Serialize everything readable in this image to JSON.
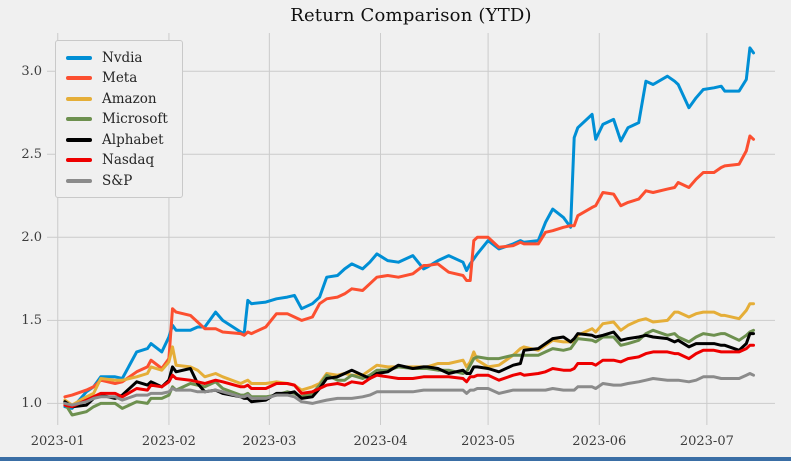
{
  "figure": {
    "background_color": "#f0f0f0",
    "grid_color": "#cbcbcb",
    "tick_label_color": "#3c3c3c",
    "bottom_bar_color": "#3a6ea5"
  },
  "chart_data": {
    "type": "line",
    "title": "Return Comparison (YTD)",
    "xlabel": "",
    "ylabel": "",
    "grid": true,
    "legend_position": "upper left",
    "x_unit": "days since 2023-01-01 (trading days)",
    "xlim": [
      -3,
      200
    ],
    "ylim": [
      0.87,
      3.23
    ],
    "y_ticks": [
      1.0,
      1.5,
      2.0,
      2.5,
      3.0
    ],
    "x_ticks": [
      {
        "day": 0,
        "label": "2023-01"
      },
      {
        "day": 31,
        "label": "2023-02"
      },
      {
        "day": 59,
        "label": "2023-03"
      },
      {
        "day": 90,
        "label": "2023-04"
      },
      {
        "day": 120,
        "label": "2023-05"
      },
      {
        "day": 151,
        "label": "2023-06"
      },
      {
        "day": 181,
        "label": "2023-07"
      }
    ],
    "x": [
      2,
      4,
      8,
      10,
      12,
      16,
      18,
      22,
      25,
      26,
      29,
      31,
      32,
      33,
      37,
      39,
      41,
      44,
      46,
      51,
      52,
      53,
      54,
      58,
      61,
      64,
      66,
      68,
      71,
      73,
      75,
      78,
      80,
      82,
      85,
      87,
      89,
      92,
      95,
      99,
      102,
      103,
      106,
      109,
      113,
      114,
      115,
      116,
      117,
      120,
      123,
      127,
      129,
      130,
      134,
      136,
      138,
      141,
      143,
      144,
      145,
      149,
      150,
      152,
      155,
      157,
      159,
      162,
      164,
      166,
      170,
      172,
      173,
      176,
      178,
      180,
      183,
      185,
      186,
      190,
      192,
      193,
      194
    ],
    "series": [
      {
        "name": "Nvdia",
        "color": "#008fd5",
        "values": [
          0.98,
          0.97,
          1.07,
          1.1,
          1.16,
          1.16,
          1.15,
          1.31,
          1.33,
          1.36,
          1.31,
          1.4,
          1.47,
          1.44,
          1.44,
          1.46,
          1.46,
          1.55,
          1.5,
          1.43,
          1.42,
          1.62,
          1.6,
          1.61,
          1.63,
          1.64,
          1.65,
          1.57,
          1.6,
          1.64,
          1.76,
          1.77,
          1.81,
          1.84,
          1.81,
          1.85,
          1.9,
          1.86,
          1.85,
          1.89,
          1.81,
          1.82,
          1.86,
          1.89,
          1.85,
          1.8,
          1.84,
          1.87,
          1.9,
          1.98,
          1.93,
          1.96,
          1.98,
          1.97,
          1.98,
          2.09,
          2.17,
          2.12,
          2.06,
          2.6,
          2.66,
          2.74,
          2.59,
          2.68,
          2.71,
          2.58,
          2.66,
          2.69,
          2.94,
          2.92,
          2.97,
          2.94,
          2.92,
          2.78,
          2.84,
          2.89,
          2.9,
          2.91,
          2.88,
          2.88,
          2.95,
          3.14,
          3.11
        ]
      },
      {
        "name": "Meta",
        "color": "#fc4f30",
        "values": [
          1.04,
          1.05,
          1.08,
          1.1,
          1.14,
          1.12,
          1.13,
          1.19,
          1.22,
          1.26,
          1.21,
          1.27,
          1.57,
          1.55,
          1.53,
          1.49,
          1.45,
          1.45,
          1.43,
          1.42,
          1.41,
          1.43,
          1.42,
          1.46,
          1.54,
          1.54,
          1.52,
          1.5,
          1.52,
          1.6,
          1.63,
          1.64,
          1.66,
          1.69,
          1.68,
          1.72,
          1.76,
          1.77,
          1.76,
          1.78,
          1.83,
          1.83,
          1.84,
          1.79,
          1.77,
          1.74,
          1.74,
          1.98,
          2.0,
          2.0,
          1.94,
          1.95,
          1.97,
          1.96,
          1.96,
          2.03,
          2.04,
          2.06,
          2.07,
          2.07,
          2.13,
          2.18,
          2.19,
          2.27,
          2.26,
          2.19,
          2.21,
          2.23,
          2.28,
          2.27,
          2.29,
          2.3,
          2.33,
          2.3,
          2.35,
          2.39,
          2.39,
          2.42,
          2.43,
          2.44,
          2.52,
          2.61,
          2.59
        ]
      },
      {
        "name": "Amazon",
        "color": "#e5ae38",
        "values": [
          1.02,
          0.99,
          1.04,
          1.06,
          1.15,
          1.14,
          1.14,
          1.16,
          1.18,
          1.22,
          1.2,
          1.25,
          1.34,
          1.23,
          1.22,
          1.2,
          1.16,
          1.18,
          1.16,
          1.12,
          1.13,
          1.14,
          1.12,
          1.12,
          1.13,
          1.12,
          1.11,
          1.08,
          1.1,
          1.12,
          1.18,
          1.17,
          1.18,
          1.17,
          1.17,
          1.2,
          1.23,
          1.22,
          1.22,
          1.22,
          1.22,
          1.22,
          1.24,
          1.24,
          1.26,
          1.22,
          1.25,
          1.31,
          1.26,
          1.22,
          1.23,
          1.29,
          1.33,
          1.34,
          1.32,
          1.35,
          1.38,
          1.37,
          1.37,
          1.37,
          1.41,
          1.45,
          1.43,
          1.48,
          1.49,
          1.44,
          1.47,
          1.5,
          1.51,
          1.49,
          1.5,
          1.55,
          1.55,
          1.52,
          1.54,
          1.55,
          1.55,
          1.53,
          1.53,
          1.51,
          1.56,
          1.6,
          1.6
        ]
      },
      {
        "name": "Microsoft",
        "color": "#6d904f",
        "values": [
          1.0,
          0.93,
          0.95,
          0.98,
          1.0,
          1.0,
          0.97,
          1.01,
          1.0,
          1.03,
          1.03,
          1.05,
          1.1,
          1.08,
          1.12,
          1.11,
          1.1,
          1.13,
          1.09,
          1.05,
          1.05,
          1.06,
          1.04,
          1.04,
          1.05,
          1.07,
          1.06,
          1.04,
          1.06,
          1.11,
          1.17,
          1.14,
          1.14,
          1.17,
          1.15,
          1.17,
          1.2,
          1.2,
          1.22,
          1.21,
          1.21,
          1.21,
          1.2,
          1.2,
          1.18,
          1.19,
          1.23,
          1.27,
          1.28,
          1.27,
          1.27,
          1.29,
          1.29,
          1.29,
          1.29,
          1.31,
          1.33,
          1.32,
          1.33,
          1.36,
          1.39,
          1.38,
          1.37,
          1.4,
          1.4,
          1.35,
          1.36,
          1.38,
          1.42,
          1.44,
          1.41,
          1.42,
          1.4,
          1.37,
          1.4,
          1.42,
          1.41,
          1.42,
          1.42,
          1.38,
          1.41,
          1.43,
          1.44
        ]
      },
      {
        "name": "Alphabet",
        "color": "#000000",
        "values": [
          1.01,
          0.98,
          0.99,
          1.03,
          1.05,
          1.03,
          1.05,
          1.13,
          1.11,
          1.13,
          1.1,
          1.14,
          1.22,
          1.19,
          1.21,
          1.12,
          1.07,
          1.08,
          1.06,
          1.04,
          1.03,
          1.03,
          1.01,
          1.02,
          1.06,
          1.06,
          1.07,
          1.03,
          1.04,
          1.09,
          1.15,
          1.16,
          1.18,
          1.2,
          1.17,
          1.15,
          1.18,
          1.19,
          1.23,
          1.21,
          1.22,
          1.22,
          1.21,
          1.18,
          1.2,
          1.18,
          1.18,
          1.22,
          1.22,
          1.21,
          1.19,
          1.23,
          1.24,
          1.32,
          1.33,
          1.36,
          1.39,
          1.4,
          1.37,
          1.39,
          1.42,
          1.41,
          1.4,
          1.41,
          1.43,
          1.38,
          1.39,
          1.4,
          1.41,
          1.4,
          1.39,
          1.37,
          1.38,
          1.34,
          1.36,
          1.36,
          1.36,
          1.35,
          1.35,
          1.32,
          1.36,
          1.42,
          1.42
        ]
      },
      {
        "name": "Nasdaq",
        "color": "#ee0000",
        "values": [
          0.99,
          0.98,
          1.02,
          1.04,
          1.06,
          1.06,
          1.04,
          1.09,
          1.08,
          1.11,
          1.1,
          1.13,
          1.17,
          1.15,
          1.14,
          1.13,
          1.12,
          1.14,
          1.13,
          1.1,
          1.1,
          1.11,
          1.09,
          1.09,
          1.12,
          1.12,
          1.11,
          1.06,
          1.07,
          1.09,
          1.11,
          1.12,
          1.11,
          1.13,
          1.12,
          1.15,
          1.17,
          1.16,
          1.15,
          1.15,
          1.16,
          1.16,
          1.16,
          1.16,
          1.15,
          1.13,
          1.16,
          1.16,
          1.17,
          1.17,
          1.14,
          1.17,
          1.18,
          1.17,
          1.18,
          1.19,
          1.21,
          1.2,
          1.2,
          1.21,
          1.24,
          1.24,
          1.23,
          1.26,
          1.26,
          1.25,
          1.27,
          1.28,
          1.3,
          1.31,
          1.31,
          1.3,
          1.3,
          1.27,
          1.3,
          1.32,
          1.32,
          1.31,
          1.31,
          1.31,
          1.33,
          1.35,
          1.35
        ]
      },
      {
        "name": "S&P",
        "color": "#8b8b8b",
        "values": [
          1.0,
          0.99,
          1.01,
          1.03,
          1.04,
          1.04,
          1.02,
          1.05,
          1.05,
          1.06,
          1.06,
          1.07,
          1.09,
          1.08,
          1.08,
          1.07,
          1.07,
          1.08,
          1.07,
          1.04,
          1.04,
          1.05,
          1.03,
          1.03,
          1.05,
          1.05,
          1.04,
          1.01,
          1.0,
          1.01,
          1.02,
          1.03,
          1.03,
          1.03,
          1.04,
          1.05,
          1.07,
          1.07,
          1.07,
          1.07,
          1.08,
          1.08,
          1.08,
          1.08,
          1.08,
          1.06,
          1.08,
          1.08,
          1.09,
          1.09,
          1.06,
          1.08,
          1.08,
          1.08,
          1.08,
          1.08,
          1.09,
          1.08,
          1.08,
          1.08,
          1.1,
          1.1,
          1.09,
          1.12,
          1.11,
          1.11,
          1.12,
          1.13,
          1.14,
          1.15,
          1.14,
          1.14,
          1.14,
          1.13,
          1.14,
          1.16,
          1.16,
          1.15,
          1.15,
          1.15,
          1.17,
          1.18,
          1.17
        ]
      }
    ]
  }
}
